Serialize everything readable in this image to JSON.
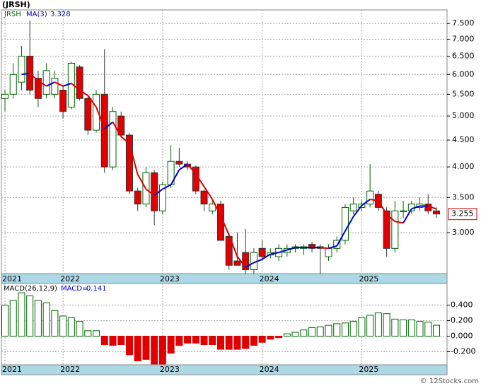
{
  "chart_data": {
    "type": "candlestick",
    "title": "(JRSH)",
    "symbol": "JRSH",
    "ma_name": "MA(3)",
    "log_scale": true,
    "grid": true,
    "up_color": "#006400",
    "down_color": "#e00000",
    "ma_up_color": "#0000cc",
    "ma_down_color": "#dd0000",
    "open": [
      5.4,
      5.5,
      5.8,
      6.5,
      5.9,
      5.5,
      5.5,
      5.6,
      5.2,
      6.2,
      5.4,
      4.7,
      5.5,
      4.0,
      5.0,
      4.6,
      3.6,
      3.4,
      3.9,
      3.3,
      3.7,
      4.1,
      4.05,
      4.0,
      3.6,
      3.3,
      3.4,
      2.95,
      2.65,
      2.75,
      2.55,
      2.8,
      2.72,
      2.7,
      2.75,
      2.8,
      2.8,
      2.85,
      2.82,
      2.7,
      2.8,
      2.9,
      3.3,
      3.35,
      3.4,
      3.55,
      3.3,
      2.8,
      3.3,
      3.3,
      3.35,
      3.4,
      3.3
    ],
    "high": [
      5.6,
      6.3,
      6.8,
      7.6,
      6.1,
      6.3,
      6.1,
      5.7,
      6.35,
      6.25,
      5.45,
      5.6,
      6.7,
      5.2,
      5.1,
      4.65,
      3.65,
      4.0,
      3.95,
      3.75,
      4.4,
      4.35,
      4.1,
      4.02,
      3.62,
      3.45,
      3.45,
      3.0,
      3.0,
      3.05,
      2.8,
      2.9,
      2.8,
      2.85,
      2.85,
      2.85,
      2.85,
      2.88,
      2.85,
      2.85,
      2.95,
      3.4,
      3.5,
      3.45,
      4.05,
      3.6,
      3.35,
      3.45,
      3.45,
      3.45,
      3.5,
      3.55,
      3.35
    ],
    "low": [
      5.1,
      5.4,
      5.6,
      5.5,
      5.2,
      5.4,
      5.4,
      4.95,
      5.15,
      5.35,
      4.6,
      4.65,
      3.9,
      3.95,
      4.55,
      3.55,
      3.3,
      3.35,
      3.1,
      3.25,
      3.65,
      4.0,
      3.95,
      3.55,
      3.3,
      3.25,
      2.9,
      2.55,
      2.6,
      2.5,
      2.5,
      2.65,
      2.68,
      2.65,
      2.7,
      2.75,
      2.72,
      2.75,
      2.5,
      2.65,
      2.75,
      2.85,
      3.25,
      3.3,
      3.35,
      3.3,
      2.7,
      2.75,
      3.2,
      3.25,
      3.3,
      3.25,
      3.2
    ],
    "close": [
      5.5,
      6.0,
      6.5,
      5.6,
      5.4,
      6.1,
      5.9,
      5.1,
      6.3,
      5.4,
      4.7,
      5.5,
      4.0,
      5.1,
      4.6,
      3.6,
      3.4,
      3.9,
      3.3,
      3.7,
      4.1,
      4.05,
      4.0,
      3.6,
      3.4,
      3.4,
      2.9,
      2.6,
      2.6,
      2.55,
      2.75,
      2.7,
      2.75,
      2.8,
      2.8,
      2.82,
      2.82,
      2.8,
      2.8,
      2.8,
      2.9,
      3.35,
      3.4,
      3.4,
      3.6,
      3.35,
      2.8,
      3.3,
      3.3,
      3.4,
      3.4,
      3.3,
      3.255
    ],
    "ma": {
      "values": [
        null,
        null,
        6.0,
        6.03,
        5.83,
        5.7,
        5.8,
        5.7,
        5.77,
        5.6,
        5.47,
        5.2,
        4.73,
        4.87,
        4.57,
        4.43,
        3.87,
        3.63,
        3.53,
        3.63,
        3.7,
        3.95,
        4.05,
        3.88,
        3.67,
        3.47,
        3.23,
        2.97,
        2.7,
        2.58,
        2.63,
        2.67,
        2.73,
        2.75,
        2.78,
        2.81,
        2.81,
        2.81,
        2.81,
        2.8,
        2.83,
        3.02,
        3.22,
        3.38,
        3.47,
        3.45,
        3.25,
        3.15,
        3.13,
        3.33,
        3.37,
        3.37,
        3.328
      ]
    },
    "ylim": [
      2.507,
      7.96
    ],
    "yticks": [
      {
        "value": 3,
        "label": "3.000"
      },
      {
        "value": 3.5,
        "label": "3.500"
      },
      {
        "value": 4,
        "label": "4.000"
      },
      {
        "value": 4.5,
        "label": "4.500"
      },
      {
        "value": 5,
        "label": "5.000"
      },
      {
        "value": 5.5,
        "label": "5.500"
      },
      {
        "value": 6,
        "label": "6.000"
      },
      {
        "value": 6.5,
        "label": "6.500"
      },
      {
        "value": 7,
        "label": "7.000"
      },
      {
        "value": 7.5,
        "label": "7.500"
      }
    ],
    "xticks": [
      {
        "value": 0,
        "label": "2021"
      },
      {
        "value": 7,
        "label": "2022"
      },
      {
        "value": 19,
        "label": "2023"
      },
      {
        "value": 31,
        "label": "2024"
      },
      {
        "value": 43,
        "label": "2025"
      }
    ],
    "macd": {
      "name": "MACD(26,12,9)",
      "legend_prefix": "MACD=",
      "values": [
        0.4,
        0.46,
        0.56,
        0.52,
        0.46,
        0.43,
        0.33,
        0.26,
        0.24,
        0.19,
        0.07,
        0.07,
        -0.11,
        -0.12,
        -0.11,
        -0.24,
        -0.32,
        -0.3,
        -0.36,
        -0.36,
        -0.22,
        -0.12,
        -0.09,
        -0.09,
        -0.11,
        -0.11,
        -0.17,
        -0.17,
        -0.17,
        -0.16,
        -0.12,
        -0.08,
        -0.04,
        -0.02,
        0.03,
        0.05,
        0.08,
        0.11,
        0.12,
        0.14,
        0.16,
        0.17,
        0.19,
        0.24,
        0.27,
        0.3,
        0.29,
        0.22,
        0.21,
        0.21,
        0.19,
        0.18,
        0.141
      ],
      "ylim": [
        -0.37,
        0.68
      ],
      "yticks": [
        {
          "value": -0.2,
          "label": "-0.200"
        },
        {
          "value": 0,
          "label": "0.000"
        },
        {
          "value": 0.2,
          "label": "0.200"
        },
        {
          "value": 0.4,
          "label": "0.400"
        }
      ]
    },
    "footer": "© 12Stocks.com"
  }
}
